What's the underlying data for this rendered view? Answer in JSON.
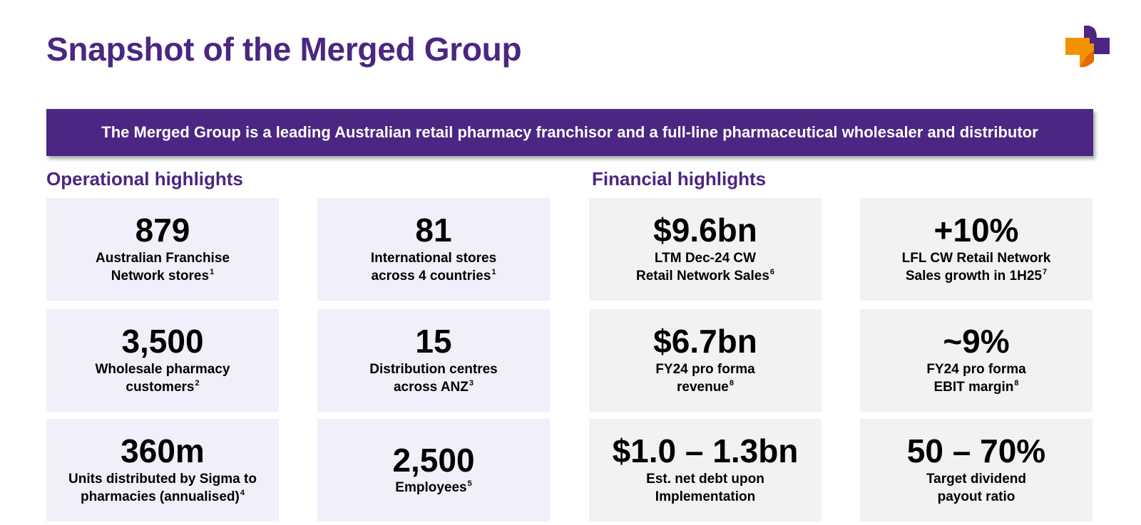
{
  "title": "Snapshot of the Merged Group",
  "banner": "The Merged Group is a leading Australian retail pharmacy franchisor and a full-line pharmaceutical wholesaler and distributor",
  "colors": {
    "brand_purple": "#4b2682",
    "logo_orange": "#f39200",
    "op_card_bg": "#f2eefa",
    "fin_card_bg": "#f2f2f2"
  },
  "operational": {
    "heading": "Operational highlights",
    "cards": [
      {
        "value": "879",
        "line1": "Australian Franchise",
        "line2": "Network stores",
        "note": "1"
      },
      {
        "value": "81",
        "line1": "International stores",
        "line2": "across 4 countries",
        "note": "1"
      },
      {
        "value": "3,500",
        "line1": "Wholesale pharmacy",
        "line2": "customers",
        "note": "2"
      },
      {
        "value": "15",
        "line1": "Distribution centres",
        "line2": "across ANZ",
        "note": "3"
      },
      {
        "value": "360m",
        "line1": "Units distributed by Sigma to",
        "line2": "pharmacies (annualised)",
        "note": "4"
      },
      {
        "value": "2,500",
        "line1": "Employees",
        "line2": "",
        "note": "5"
      }
    ]
  },
  "financial": {
    "heading": "Financial highlights",
    "cards": [
      {
        "value": "$9.6bn",
        "line1": "LTM Dec-24 CW",
        "line2": "Retail Network Sales",
        "note": "6"
      },
      {
        "value": "+10%",
        "line1": "LFL CW Retail Network",
        "line2": "Sales growth in 1H25",
        "note": "7"
      },
      {
        "value": "$6.7bn",
        "line1": "FY24 pro forma",
        "line2": "revenue",
        "note": "8"
      },
      {
        "value": "~9%",
        "line1": "FY24 pro forma",
        "line2": "EBIT margin",
        "note": "8"
      },
      {
        "value": "$1.0 – 1.3bn",
        "line1": "Est. net debt upon",
        "line2": "Implementation",
        "note": ""
      },
      {
        "value": "50 – 70%",
        "line1": "Target dividend",
        "line2": "payout ratio",
        "note": ""
      }
    ]
  }
}
